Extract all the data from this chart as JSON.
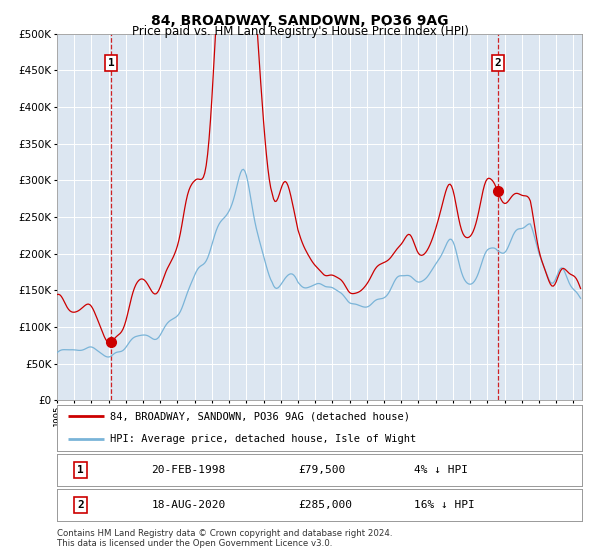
{
  "title": "84, BROADWAY, SANDOWN, PO36 9AG",
  "subtitle": "Price paid vs. HM Land Registry's House Price Index (HPI)",
  "hpi_label": "HPI: Average price, detached house, Isle of Wight",
  "property_label": "84, BROADWAY, SANDOWN, PO36 9AG (detached house)",
  "transactions": [
    {
      "num": 1,
      "date": "20-FEB-1998",
      "price": 79500,
      "pct": "4%",
      "dir": "↓"
    },
    {
      "num": 2,
      "date": "18-AUG-2020",
      "price": 285000,
      "pct": "16%",
      "dir": "↓"
    }
  ],
  "trans_dates_decimal": [
    1998.13,
    2020.62
  ],
  "trans_prices": [
    79500,
    285000
  ],
  "ylim": [
    0,
    500000
  ],
  "yticks": [
    0,
    50000,
    100000,
    150000,
    200000,
    250000,
    300000,
    350000,
    400000,
    450000,
    500000
  ],
  "xlim_start": 1995.0,
  "xlim_end": 2025.5,
  "background_color": "#dce6f1",
  "hpi_color": "#7ab4d8",
  "property_color": "#cc0000",
  "vline_color": "#cc0000",
  "grid_color": "#ffffff",
  "footer": "Contains HM Land Registry data © Crown copyright and database right 2024.\nThis data is licensed under the Open Government Licence v3.0."
}
